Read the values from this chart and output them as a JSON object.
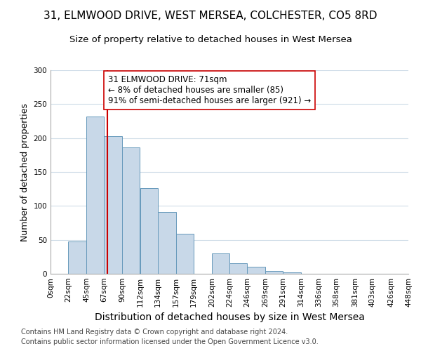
{
  "title": "31, ELMWOOD DRIVE, WEST MERSEA, COLCHESTER, CO5 8RD",
  "subtitle": "Size of property relative to detached houses in West Mersea",
  "xlabel": "Distribution of detached houses by size in West Mersea",
  "ylabel": "Number of detached properties",
  "footnote1": "Contains HM Land Registry data © Crown copyright and database right 2024.",
  "footnote2": "Contains public sector information licensed under the Open Government Licence v3.0.",
  "bin_edges": [
    0,
    22,
    45,
    67,
    90,
    112,
    134,
    157,
    179,
    202,
    224,
    246,
    269,
    291,
    314,
    336,
    358,
    381,
    403,
    426,
    448
  ],
  "bin_labels": [
    "0sqm",
    "22sqm",
    "45sqm",
    "67sqm",
    "90sqm",
    "112sqm",
    "134sqm",
    "157sqm",
    "179sqm",
    "202sqm",
    "224sqm",
    "246sqm",
    "269sqm",
    "291sqm",
    "314sqm",
    "336sqm",
    "358sqm",
    "381sqm",
    "403sqm",
    "426sqm",
    "448sqm"
  ],
  "bar_heights": [
    0,
    48,
    232,
    203,
    186,
    126,
    91,
    59,
    0,
    30,
    16,
    10,
    4,
    2,
    0,
    0,
    0,
    0,
    0,
    0
  ],
  "bar_color": "#c8d8e8",
  "bar_edgecolor": "#6699bb",
  "vline_x": 71,
  "vline_color": "#cc0000",
  "annotation_text": "31 ELMWOOD DRIVE: 71sqm\n← 8% of detached houses are smaller (85)\n91% of semi-detached houses are larger (921) →",
  "annotation_box_edgecolor": "#cc0000",
  "annotation_box_facecolor": "#ffffff",
  "ylim": [
    0,
    300
  ],
  "yticks": [
    0,
    50,
    100,
    150,
    200,
    250,
    300
  ],
  "title_fontsize": 11,
  "subtitle_fontsize": 9.5,
  "xlabel_fontsize": 10,
  "ylabel_fontsize": 9,
  "tick_fontsize": 7.5,
  "annotation_fontsize": 8.5,
  "footnote_fontsize": 7,
  "background_color": "#ffffff",
  "grid_color": "#d0dde8"
}
